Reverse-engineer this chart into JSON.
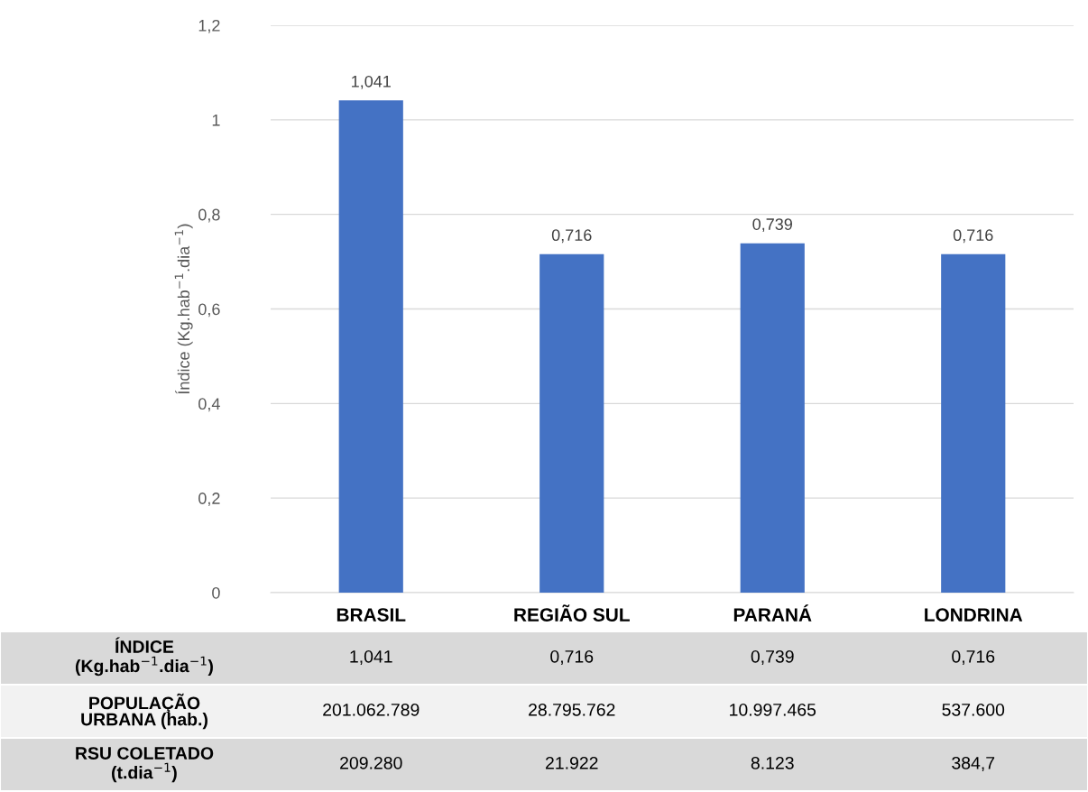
{
  "chart_data": {
    "type": "bar",
    "ylabel": "Índice (Kg.hab$^{−1}$.dia$^{−1}$)",
    "categories": [
      "BRASIL",
      "REGIÃO SUL",
      "PARANÁ",
      "LONDRINA"
    ],
    "values": [
      1.041,
      0.716,
      0.739,
      0.716
    ],
    "value_labels": [
      "1,041",
      "0,716",
      "0,739",
      "0,716"
    ],
    "color": "#4472c4",
    "ylim": [
      0,
      1.2
    ],
    "yticks": [
      0,
      {
        "value": 0.2,
        "label": "0,2"
      },
      {
        "value": 0.4,
        "label": "0,4"
      },
      {
        "value": 0.6,
        "label": "0,6"
      },
      {
        "value": 0.8,
        "label": "0,8"
      },
      1,
      {
        "value": 1.2,
        "label": "1,2"
      }
    ],
    "grid": "y",
    "annotations": [
      "ÍNDICE\n(Kg.hab$^{−1}$.dia$^{−1}$)",
      "POPULAÇÃO\nURBANA (hab.)",
      "RSU COLETADO\n(t.dia$^{−1}$)",
      "201.062.789",
      "28.795.762",
      "10.997.465",
      "537.600",
      "209.280",
      "21.922",
      "8.123",
      "384,7"
    ]
  }
}
